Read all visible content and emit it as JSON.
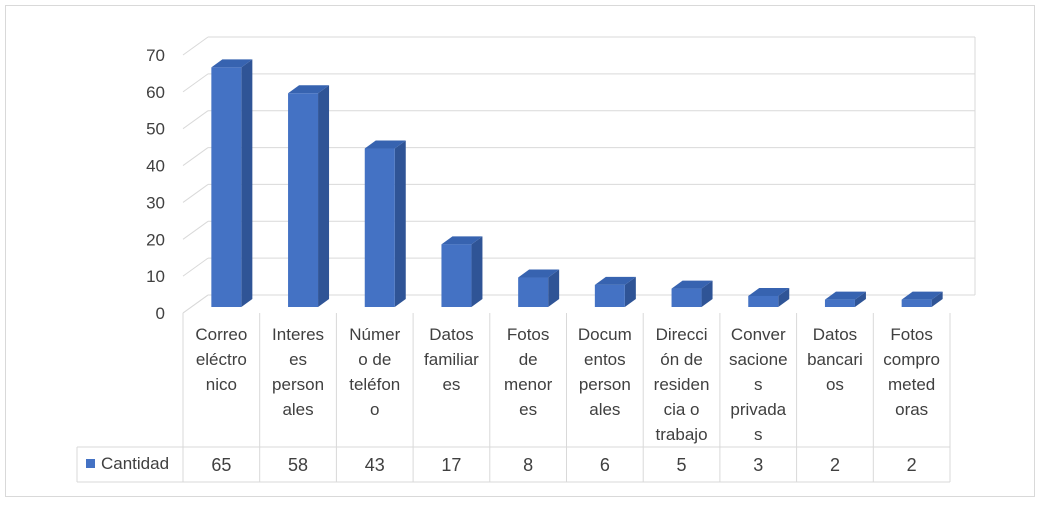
{
  "chart_data": {
    "type": "bar",
    "title": "",
    "xlabel": "",
    "ylabel": "",
    "ylim": [
      0,
      70
    ],
    "yticks": [
      0,
      10,
      20,
      30,
      40,
      50,
      60,
      70
    ],
    "grid": true,
    "legend_placement": "left of data table",
    "categories": [
      [
        "Correo",
        "eléctro",
        "nico"
      ],
      [
        "Interes",
        "es",
        "person",
        "ales"
      ],
      [
        "Númer",
        "o de",
        "teléfon",
        "o"
      ],
      [
        "Datos",
        "familiar",
        "es"
      ],
      [
        "Fotos",
        "de",
        "menor",
        "es"
      ],
      [
        "Docum",
        "entos",
        "person",
        "ales"
      ],
      [
        "Direcci",
        "ón de",
        "residen",
        "cia o",
        "trabajo"
      ],
      [
        "Conver",
        "sacione",
        "s",
        "privada",
        "s"
      ],
      [
        "Datos",
        "bancari",
        "os"
      ],
      [
        "Fotos",
        "compro",
        "meted",
        "oras"
      ]
    ],
    "series": [
      {
        "name": "Cantidad",
        "values": [
          65,
          58,
          43,
          17,
          8,
          6,
          5,
          3,
          2,
          2
        ],
        "labels": [
          "65",
          "58",
          "43",
          "17",
          "8",
          "6",
          "5",
          "3",
          "2",
          "2"
        ]
      }
    ],
    "colors": {
      "bar_front": "#4472c4",
      "bar_side": "#2f5496",
      "bar_top": "#3763b0",
      "gridline": "#d9d9d9",
      "text": "#404040"
    }
  }
}
